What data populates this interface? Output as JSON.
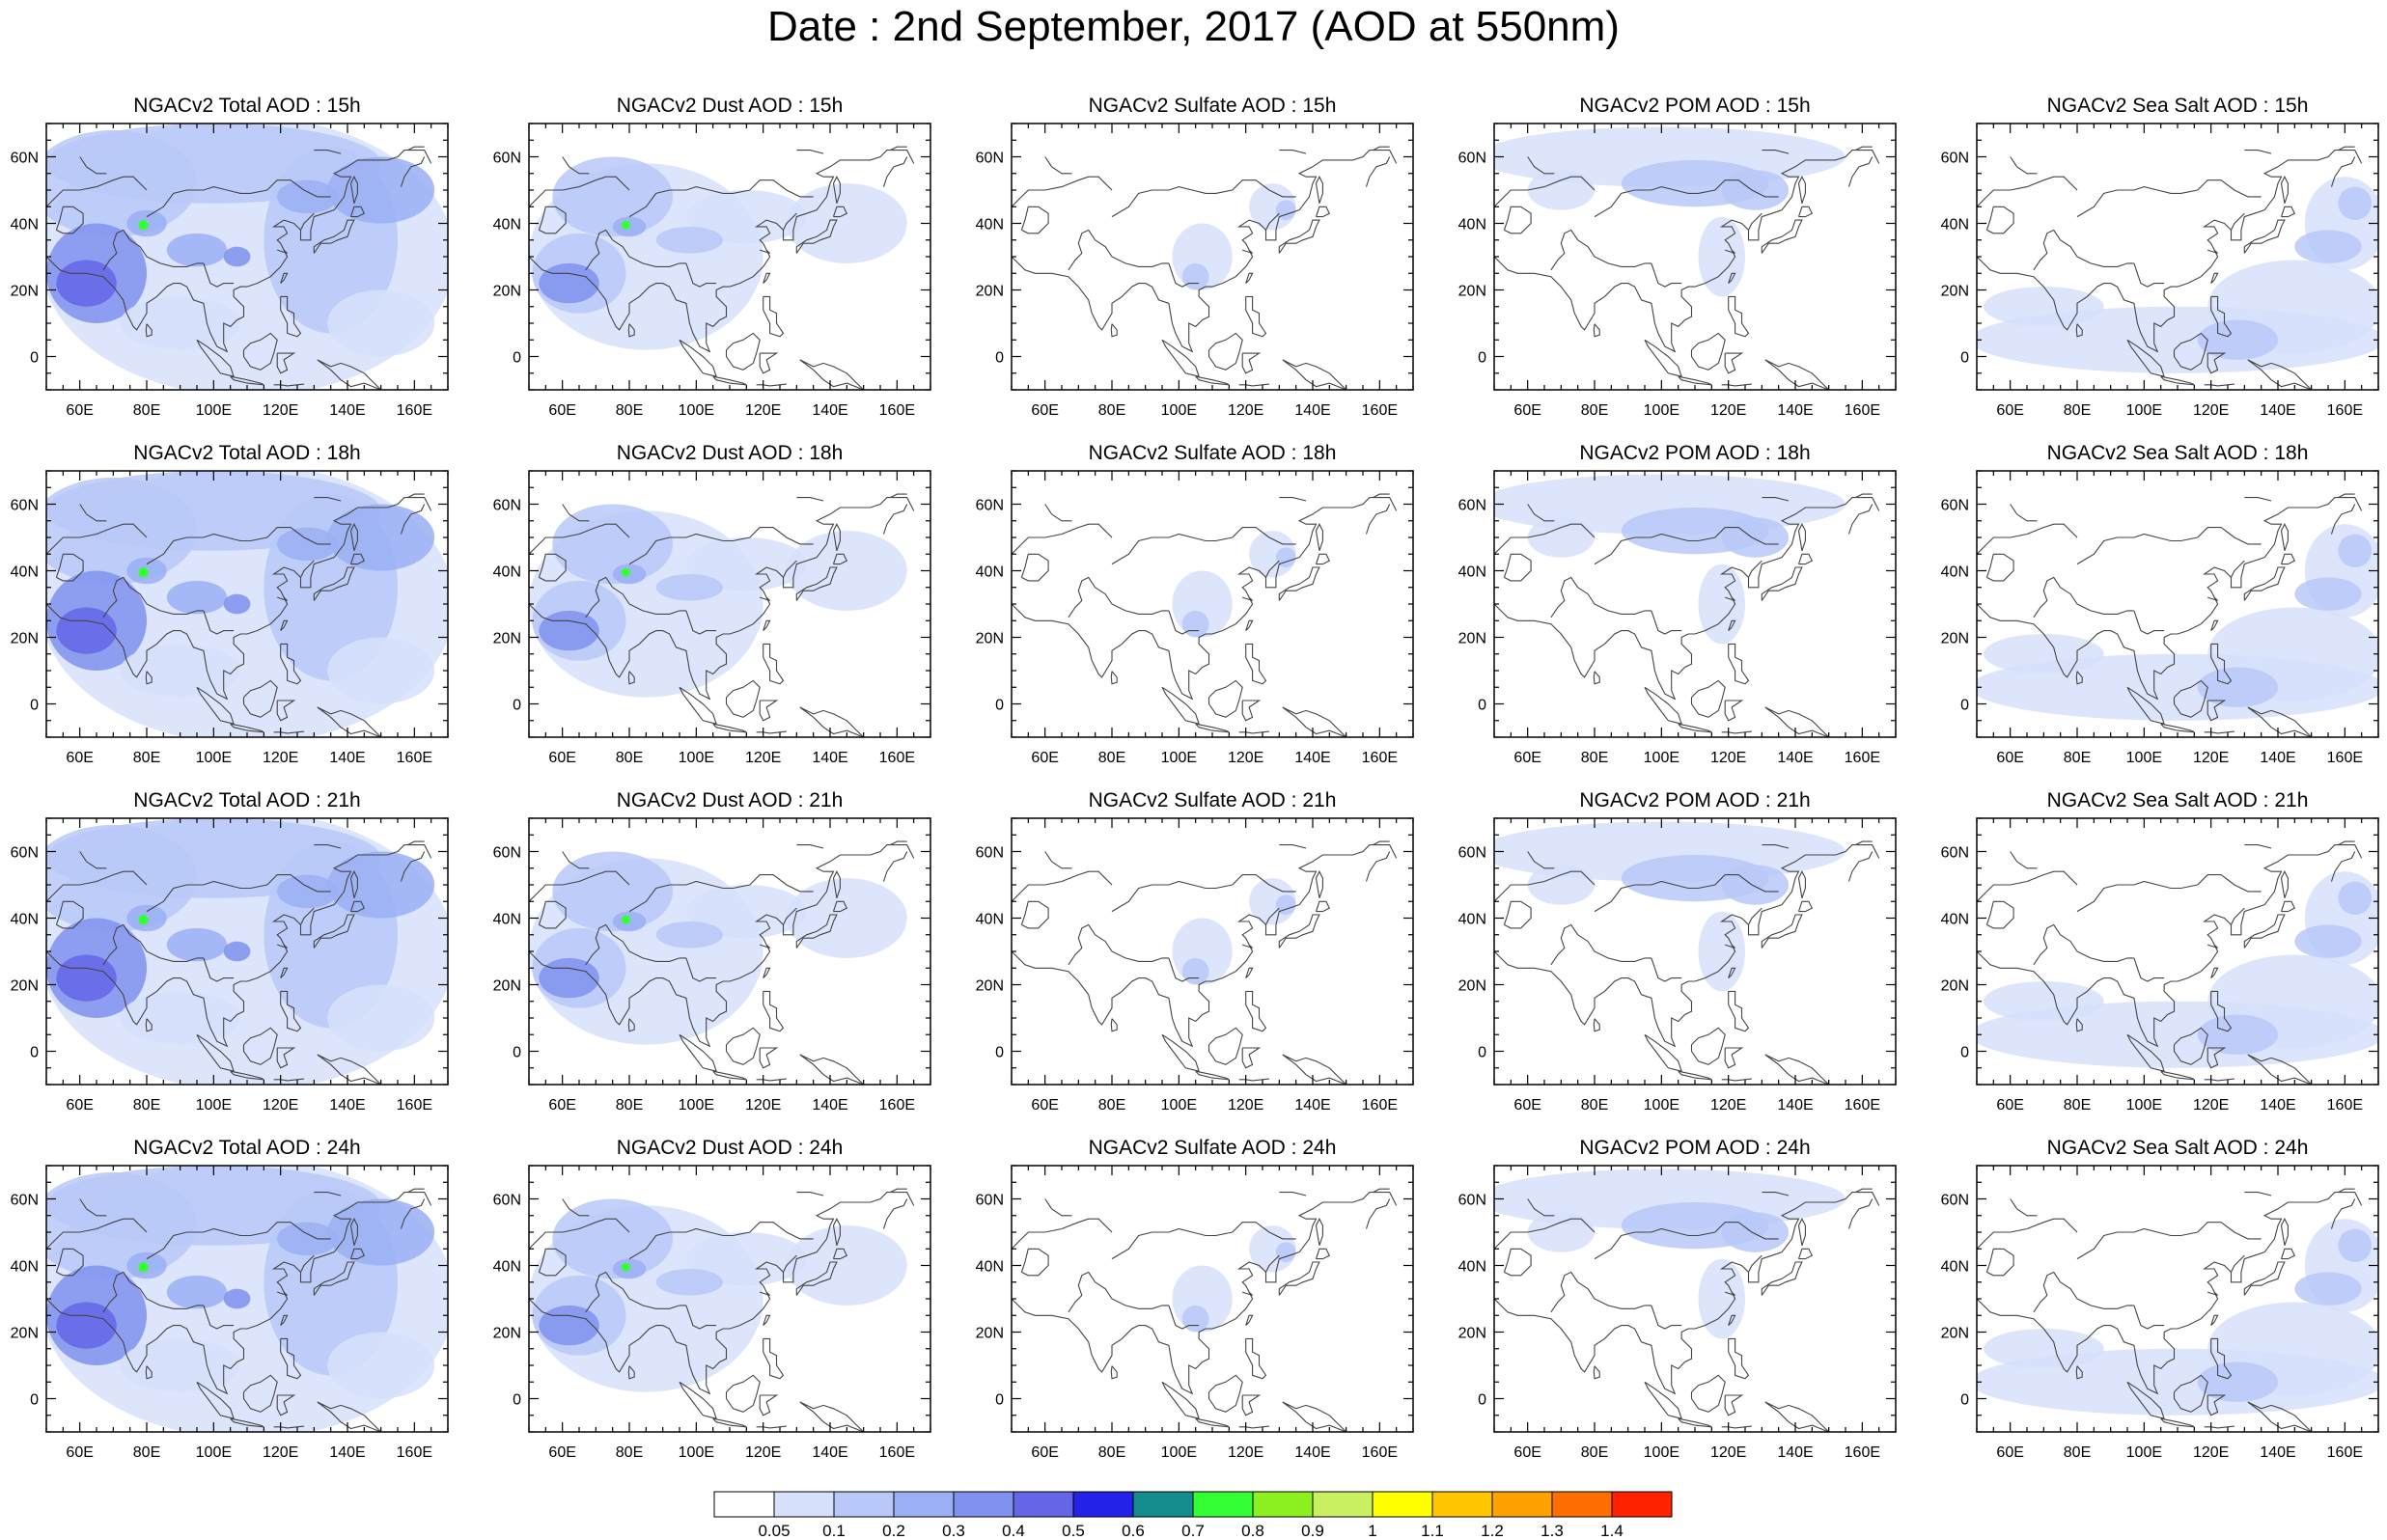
{
  "title": "Date : 2nd September, 2017 (AOD at 550nm)",
  "axes": {
    "x_ticks": [
      "60E",
      "80E",
      "100E",
      "120E",
      "140E",
      "160E"
    ],
    "y_ticks": [
      "60N",
      "40N",
      "20N",
      "0"
    ],
    "lon_range": [
      50,
      170
    ],
    "lat_range": [
      -10,
      70
    ]
  },
  "panels": [
    {
      "title": "NGACv2 Total AOD : 15h",
      "species": "total"
    },
    {
      "title": "NGACv2 Dust AOD : 15h",
      "species": "dust"
    },
    {
      "title": "NGACv2 Sulfate AOD : 15h",
      "species": "sulfate"
    },
    {
      "title": "NGACv2 POM AOD : 15h",
      "species": "pom"
    },
    {
      "title": "NGACv2 Sea Salt AOD : 15h",
      "species": "seasalt"
    },
    {
      "title": "NGACv2 Total AOD : 18h",
      "species": "total"
    },
    {
      "title": "NGACv2 Dust AOD : 18h",
      "species": "dust"
    },
    {
      "title": "NGACv2 Sulfate AOD : 18h",
      "species": "sulfate"
    },
    {
      "title": "NGACv2 POM AOD : 18h",
      "species": "pom"
    },
    {
      "title": "NGACv2 Sea Salt AOD : 18h",
      "species": "seasalt"
    },
    {
      "title": "NGACv2 Total AOD : 21h",
      "species": "total"
    },
    {
      "title": "NGACv2 Dust AOD : 21h",
      "species": "dust"
    },
    {
      "title": "NGACv2 Sulfate AOD : 21h",
      "species": "sulfate"
    },
    {
      "title": "NGACv2 POM AOD : 21h",
      "species": "pom"
    },
    {
      "title": "NGACv2 Sea Salt AOD : 21h",
      "species": "seasalt"
    },
    {
      "title": "NGACv2 Total AOD : 24h",
      "species": "total"
    },
    {
      "title": "NGACv2 Dust AOD : 24h",
      "species": "dust"
    },
    {
      "title": "NGACv2 Sulfate AOD : 24h",
      "species": "sulfate"
    },
    {
      "title": "NGACv2 POM AOD : 24h",
      "species": "pom"
    },
    {
      "title": "NGACv2 Sea Salt  AOD : 24h",
      "species": "seasalt"
    }
  ],
  "colorbar": {
    "labels": [
      "0.05",
      "0.1",
      "0.2",
      "0.3",
      "0.4",
      "0.5",
      "0.6",
      "0.7",
      "0.8",
      "0.9",
      "1",
      "1.1",
      "1.2",
      "1.3",
      "1.4"
    ],
    "colors": [
      "#ffffff",
      "#d6e0fa",
      "#b8c8f8",
      "#9aaff4",
      "#7f92ee",
      "#6565e8",
      "#2222e8",
      "#128c8c",
      "#33ff33",
      "#8cf020",
      "#c8f060",
      "#ffff00",
      "#ffc600",
      "#ffa200",
      "#ff6e00",
      "#ff2200"
    ]
  },
  "styles": {
    "coast": "#444444",
    "light": "#d6e0fa",
    "medium": "#b8c8f8",
    "strong": "#9aaff4",
    "deep": "#7f92ee",
    "peak": "#6565e8",
    "hot": "#33ff33"
  }
}
